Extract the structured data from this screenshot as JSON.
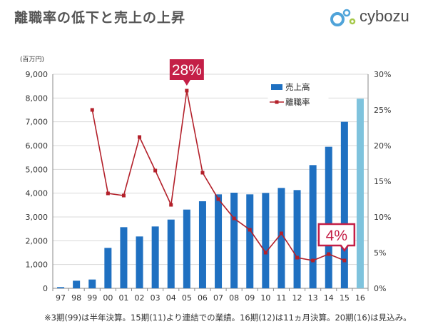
{
  "header": {
    "title": "離職率の低下と売上の上昇",
    "brand_name": "cybozu",
    "brand_colors": {
      "text": "#4a4a4a",
      "circle_blue": "#4fa3d9",
      "circle_green": "#a6c84a"
    }
  },
  "colors": {
    "bar": "#1f70c1",
    "bar_forecast": "#7fc3dd",
    "line": "#b3202a",
    "callout_fill": "#c41f47",
    "gridline": "#d9d9d9"
  },
  "chart_data": {
    "type": "bar",
    "title": "",
    "xlabel": "",
    "ylabel_left_unit": "(百万円)",
    "categories": [
      "97",
      "98",
      "99",
      "00",
      "01",
      "02",
      "03",
      "04",
      "05",
      "06",
      "07",
      "08",
      "09",
      "10",
      "11",
      "12",
      "13",
      "14",
      "15",
      "16"
    ],
    "y_left": {
      "min": 0,
      "max": 9000,
      "step": 1000,
      "ticks": [
        "0",
        "1,000",
        "2,000",
        "3,000",
        "4,000",
        "5,000",
        "6,000",
        "7,000",
        "8,000",
        "9,000"
      ]
    },
    "y_right": {
      "min": 0,
      "max": 30,
      "step": 5,
      "ticks": [
        "0%",
        "5%",
        "10%",
        "15%",
        "20%",
        "25%",
        "30%"
      ]
    },
    "grid": true,
    "legend_position": "top-right",
    "series": [
      {
        "name": "売上高",
        "kind": "bar",
        "axis": "left",
        "values": [
          50,
          320,
          370,
          1700,
          2570,
          2180,
          2600,
          2890,
          3310,
          3660,
          3950,
          4020,
          3950,
          4010,
          4220,
          4130,
          5180,
          5950,
          7000,
          7970
        ],
        "forecast_index": 19
      },
      {
        "name": "離職率",
        "kind": "line",
        "axis": "right",
        "values": [
          null,
          null,
          25.0,
          13.3,
          13.0,
          21.2,
          16.5,
          11.7,
          27.7,
          16.2,
          12.5,
          9.8,
          8.2,
          5.0,
          7.7,
          4.3,
          3.9,
          4.8,
          3.9,
          null
        ]
      }
    ],
    "annotations": [
      {
        "label": "28%",
        "series": "離職率",
        "category": "05"
      },
      {
        "label": "4%",
        "series": "離職率",
        "category": "15"
      }
    ]
  },
  "footnote": "※3期(99)は半年決算。15期(11)より連結での業績。16期(12)は11ヵ月決算。20期(16)は見込み。"
}
